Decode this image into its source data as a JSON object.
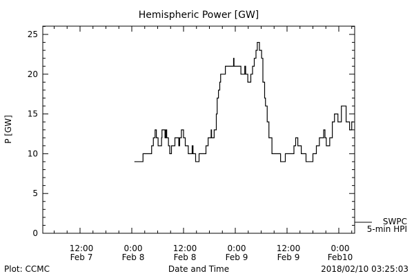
{
  "chart_data": {
    "type": "line",
    "title": "Hemispheric Power [GW]",
    "xlabel": "Date and Time",
    "ylabel": "P [GW]",
    "x_units": "hours since Feb 7 00:00",
    "xlim": [
      3.4,
      75.7
    ],
    "ylim": [
      0,
      26
    ],
    "yticks": [
      0,
      5,
      10,
      15,
      20,
      25
    ],
    "xticks": [
      {
        "h": 12,
        "line1": "12:00",
        "line2": "Feb 7"
      },
      {
        "h": 24,
        "line1": "0:00",
        "line2": "Feb 8"
      },
      {
        "h": 36,
        "line1": "12:00",
        "line2": "Feb 8"
      },
      {
        "h": 48,
        "line1": "0:00",
        "line2": "Feb 9"
      },
      {
        "h": 60,
        "line1": "12:00",
        "line2": "Feb 9"
      },
      {
        "h": 72,
        "line1": "0:00",
        "line2": "Feb10"
      }
    ],
    "legend": {
      "line1": "SWPC",
      "line2": "5-min HPI",
      "placement": "bottom-right outside"
    },
    "series": [
      {
        "name": "SWPC 5-min HPI",
        "step": true,
        "x": [
          24.6,
          26.6,
          28.6,
          29.0,
          29.4,
          29.7,
          30.1,
          30.9,
          31.0,
          31.7,
          31.9,
          32.1,
          32.5,
          32.8,
          33.2,
          34.0,
          34.7,
          34.9,
          35.1,
          35.5,
          36.0,
          36.4,
          37.1,
          38.0,
          38.2,
          38.8,
          39.6,
          41.2,
          41.7,
          42.4,
          42.5,
          43.1,
          43.6,
          43.8,
          44.1,
          44.4,
          44.6,
          45.2,
          45.7,
          47.6,
          47.7,
          49.3,
          50.2,
          50.4,
          50.9,
          51.6,
          52.0,
          52.4,
          52.8,
          53.1,
          53.6,
          54.1,
          54.4,
          54.8,
          55.0,
          55.4,
          55.8,
          56.5,
          58.5,
          59.6,
          61.6,
          62.0,
          62.5,
          63.3,
          64.4,
          66.0,
          66.8,
          67.5,
          68.5,
          68.8,
          69.1,
          69.9,
          70.5,
          71.0,
          71.8,
          72.6,
          73.7,
          74.5,
          75.0,
          75.4
        ],
        "y": [
          9,
          10,
          11,
          12,
          13,
          12,
          11,
          12,
          13,
          12,
          13,
          12,
          11,
          10,
          11,
          12,
          12,
          11,
          12,
          13,
          12,
          11,
          10,
          11,
          10,
          9,
          10,
          11,
          12,
          13,
          12,
          13,
          15,
          17,
          18,
          19,
          20,
          20,
          21,
          22,
          21,
          20,
          21,
          20,
          19,
          20,
          21,
          22,
          23,
          24,
          23,
          22,
          19,
          17,
          16,
          14,
          12,
          10,
          9,
          10,
          11,
          12,
          11,
          10,
          9,
          10,
          11,
          12,
          13,
          12,
          11,
          12,
          14,
          15,
          14,
          16,
          14,
          13,
          14,
          14
        ]
      }
    ]
  },
  "footer": {
    "left": "Plot: CCMC",
    "timestamp": "2018/02/10 03:25:03"
  }
}
